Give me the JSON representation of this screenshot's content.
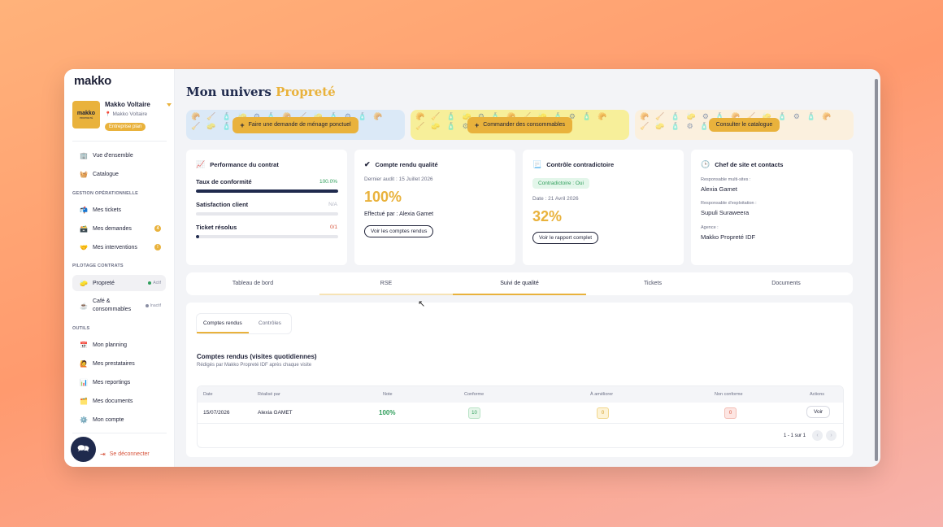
{
  "sidebar": {
    "logo": "makko",
    "company": {
      "logo_line1": "makko",
      "logo_line2": "PROPRETÉ",
      "name": "Makko Voltaire",
      "location": "Makko Voltaire",
      "badge": "Entreprise plan"
    },
    "items_top": [
      {
        "icon": "🏢",
        "label": "Vue d'ensemble"
      },
      {
        "icon": "🧺",
        "label": "Catalogue"
      }
    ],
    "section_ops": "GESTION OPÉRATIONNELLE",
    "items_ops": [
      {
        "icon": "📬",
        "label": "Mes tickets"
      },
      {
        "icon": "🗃️",
        "label": "Mes demandes",
        "badge": "4"
      },
      {
        "icon": "🤝",
        "label": "Mes interventions",
        "badge": "!"
      }
    ],
    "section_contracts": "PILOTAGE CONTRATS",
    "items_contracts": [
      {
        "icon": "🧽",
        "label": "Propreté",
        "status": "Actif",
        "status_color": "#2f9e5b"
      },
      {
        "icon": "☕",
        "label": "Café & consommables",
        "status": "Inactif",
        "status_color": "#8a8ea3"
      }
    ],
    "section_tools": "OUTILS",
    "items_tools": [
      {
        "icon": "📅",
        "label": "Mon planning"
      },
      {
        "icon": "🙋",
        "label": "Mes prestataires"
      },
      {
        "icon": "📊",
        "label": "Mes reportings"
      },
      {
        "icon": "🗂️",
        "label": "Mes documents"
      },
      {
        "icon": "⚙️",
        "label": "Mon compte"
      }
    ],
    "logout": "Se déconnecter"
  },
  "header": {
    "title_main": "Mon univers",
    "title_accent": "Propreté"
  },
  "banners": [
    {
      "label": "Faire une demande de ménage ponctuel",
      "bg": "#dbe9f7",
      "plus": true
    },
    {
      "label": "Commander des consommables",
      "bg": "#f7ef9a",
      "plus": true
    },
    {
      "label": "Consulter le catalogue",
      "bg": "#fbf0de",
      "plus": false
    }
  ],
  "cards": {
    "performance": {
      "icon": "📈",
      "title": "Performance du contrat",
      "metrics": [
        {
          "label": "Taux de conformité",
          "value": "100.0%",
          "value_color": "#2f9e5b",
          "fill": 1.0
        },
        {
          "label": "Satisfaction client",
          "value": "N/A",
          "value_color": "#b4b7c4",
          "fill": 0.0
        },
        {
          "label": "Ticket résolus",
          "value": "0/1",
          "value_color": "#d6533b",
          "fill": 0.02
        }
      ]
    },
    "quality": {
      "icon": "✔",
      "title": "Compte rendu qualité",
      "last_audit": "Dernier audit : 15 Juillet 2026",
      "score": "100%",
      "done_by": "Effectué par : Alexia Gamet",
      "button": "Voir les comptes rendus"
    },
    "contradictory": {
      "icon": "📃",
      "title": "Contrôle contradictoire",
      "pill": "Contradictoire : Oui",
      "date": "Date : 21 Avril 2026",
      "score": "32%",
      "button": "Voir le rapport complet"
    },
    "contacts": {
      "icon": "🕒",
      "title": "Chef de site et contacts",
      "entries": [
        {
          "label": "Responsable multi-sites :",
          "name": "Alexia Gamet"
        },
        {
          "label": "Responsable d'exploitation :",
          "name": "Supuli Suraweera"
        },
        {
          "label": "Agence :",
          "name": "Makko Propreté IDF"
        }
      ]
    }
  },
  "tabs": [
    "Tableau de bord",
    "RSE",
    "Suivi de qualité",
    "Tickets",
    "Documents"
  ],
  "active_tab": 2,
  "panel": {
    "subtabs": [
      "Comptes rendus",
      "Contrôles"
    ],
    "section_title": "Comptes rendus (visites quotidiennes)",
    "section_sub": "Rédigés par Makko Propreté IDF après chaque visite",
    "columns": [
      "Date",
      "Réalisé par",
      "Note",
      "Conforme",
      "À améliorer",
      "Non conforme",
      "Actions"
    ],
    "rows": [
      {
        "date": "15/07/2026",
        "by": "Alexia GAMET",
        "note": "100%",
        "conforme": "10",
        "ameliorer": "0",
        "non_conforme": "0",
        "action": "Voir"
      }
    ],
    "pagination": "1 - 1 sur 1"
  }
}
